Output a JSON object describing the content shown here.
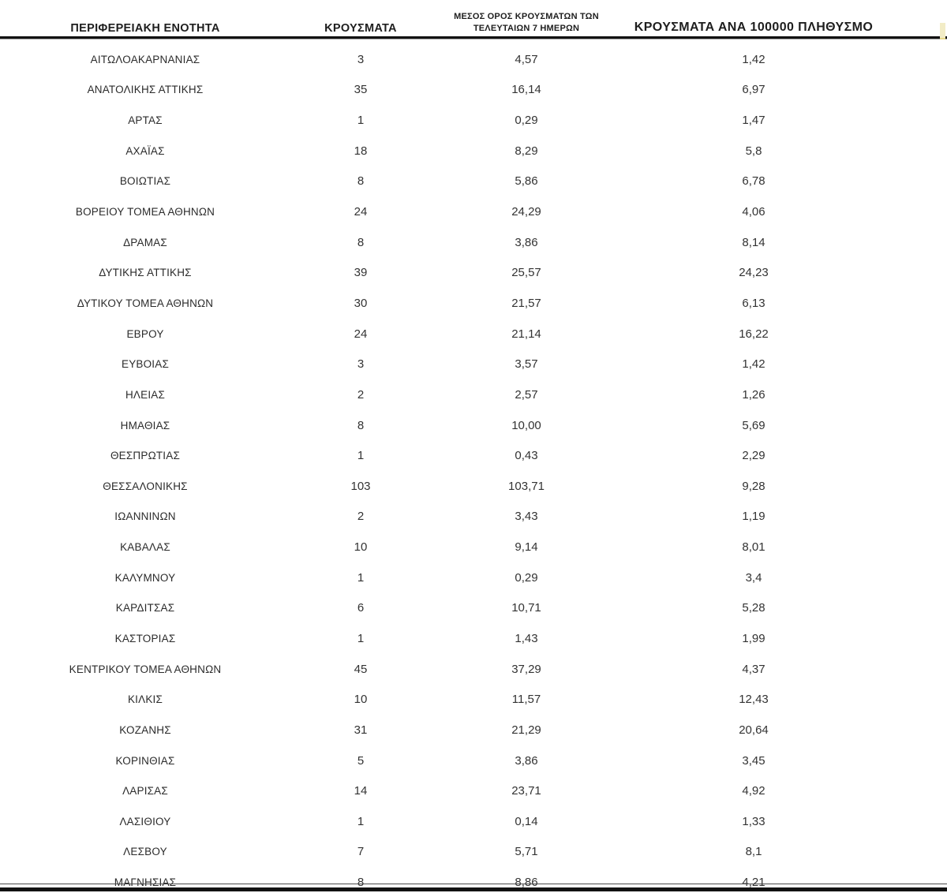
{
  "page": {
    "background_color": "#ffffff",
    "rule_color": "#121212",
    "text_color": "#2d2d2d",
    "edge_fragment_color": "#f2ecc6"
  },
  "table": {
    "header": {
      "col_region": "ΠΕΡΙΦΕΡΕΙΑΚΗ ΕΝΟΤΗΤΑ",
      "col_cases": "ΚΡΟΥΣΜΑΤΑ",
      "col_avg7_line1": "ΜΕΣΟΣ ΟΡΟΣ ΚΡΟΥΣΜΑΤΩΝ ΤΩΝ",
      "col_avg7_line2": "ΤΕΛΕΥΤΑΙΩΝ 7 ΗΜΕΡΩΝ",
      "col_per100k": "ΚΡΟΥΣΜΑΤΑ ΑΝΑ 100000 ΠΛΗΘΥΣΜΟ"
    },
    "rows": [
      {
        "region": "ΑΙΤΩΛΟΑΚΑΡΝΑΝΙΑΣ",
        "cases": "3",
        "avg_7day": "4,57",
        "per_100k": "1,42"
      },
      {
        "region": "ΑΝΑΤΟΛΙΚΗΣ ΑΤΤΙΚΗΣ",
        "cases": "35",
        "avg_7day": "16,14",
        "per_100k": "6,97"
      },
      {
        "region": "ΑΡΤΑΣ",
        "cases": "1",
        "avg_7day": "0,29",
        "per_100k": "1,47"
      },
      {
        "region": "ΑΧΑΪΑΣ",
        "cases": "18",
        "avg_7day": "8,29",
        "per_100k": "5,8"
      },
      {
        "region": "ΒΟΙΩΤΙΑΣ",
        "cases": "8",
        "avg_7day": "5,86",
        "per_100k": "6,78"
      },
      {
        "region": "ΒΟΡΕΙΟΥ ΤΟΜΕΑ ΑΘΗΝΩΝ",
        "cases": "24",
        "avg_7day": "24,29",
        "per_100k": "4,06"
      },
      {
        "region": "ΔΡΑΜΑΣ",
        "cases": "8",
        "avg_7day": "3,86",
        "per_100k": "8,14"
      },
      {
        "region": "ΔΥΤΙΚΗΣ ΑΤΤΙΚΗΣ",
        "cases": "39",
        "avg_7day": "25,57",
        "per_100k": "24,23"
      },
      {
        "region": "ΔΥΤΙΚΟΥ ΤΟΜΕΑ ΑΘΗΝΩΝ",
        "cases": "30",
        "avg_7day": "21,57",
        "per_100k": "6,13"
      },
      {
        "region": "ΕΒΡΟΥ",
        "cases": "24",
        "avg_7day": "21,14",
        "per_100k": "16,22"
      },
      {
        "region": "ΕΥΒΟΙΑΣ",
        "cases": "3",
        "avg_7day": "3,57",
        "per_100k": "1,42"
      },
      {
        "region": "ΗΛΕΙΑΣ",
        "cases": "2",
        "avg_7day": "2,57",
        "per_100k": "1,26"
      },
      {
        "region": "ΗΜΑΘΙΑΣ",
        "cases": "8",
        "avg_7day": "10,00",
        "per_100k": "5,69"
      },
      {
        "region": "ΘΕΣΠΡΩΤΙΑΣ",
        "cases": "1",
        "avg_7day": "0,43",
        "per_100k": "2,29"
      },
      {
        "region": "ΘΕΣΣΑΛΟΝΙΚΗΣ",
        "cases": "103",
        "avg_7day": "103,71",
        "per_100k": "9,28"
      },
      {
        "region": "ΙΩΑΝΝΙΝΩΝ",
        "cases": "2",
        "avg_7day": "3,43",
        "per_100k": "1,19"
      },
      {
        "region": "ΚΑΒΑΛΑΣ",
        "cases": "10",
        "avg_7day": "9,14",
        "per_100k": "8,01"
      },
      {
        "region": "ΚΑΛΥΜΝΟΥ",
        "cases": "1",
        "avg_7day": "0,29",
        "per_100k": "3,4"
      },
      {
        "region": "ΚΑΡΔΙΤΣΑΣ",
        "cases": "6",
        "avg_7day": "10,71",
        "per_100k": "5,28"
      },
      {
        "region": "ΚΑΣΤΟΡΙΑΣ",
        "cases": "1",
        "avg_7day": "1,43",
        "per_100k": "1,99"
      },
      {
        "region": "ΚΕΝΤΡΙΚΟΥ ΤΟΜΕΑ ΑΘΗΝΩΝ",
        "cases": "45",
        "avg_7day": "37,29",
        "per_100k": "4,37"
      },
      {
        "region": "ΚΙΛΚΙΣ",
        "cases": "10",
        "avg_7day": "11,57",
        "per_100k": "12,43"
      },
      {
        "region": "ΚΟΖΑΝΗΣ",
        "cases": "31",
        "avg_7day": "21,29",
        "per_100k": "20,64"
      },
      {
        "region": "ΚΟΡΙΝΘΙΑΣ",
        "cases": "5",
        "avg_7day": "3,86",
        "per_100k": "3,45"
      },
      {
        "region": "ΛΑΡΙΣΑΣ",
        "cases": "14",
        "avg_7day": "23,71",
        "per_100k": "4,92"
      },
      {
        "region": "ΛΑΣΙΘΙΟΥ",
        "cases": "1",
        "avg_7day": "0,14",
        "per_100k": "1,33"
      },
      {
        "region": "ΛΕΣΒΟΥ",
        "cases": "7",
        "avg_7day": "5,71",
        "per_100k": "8,1"
      },
      {
        "region": "ΜΑΓΝΗΣΙΑΣ",
        "cases": "8",
        "avg_7day": "8,86",
        "per_100k": "4,21"
      }
    ]
  }
}
